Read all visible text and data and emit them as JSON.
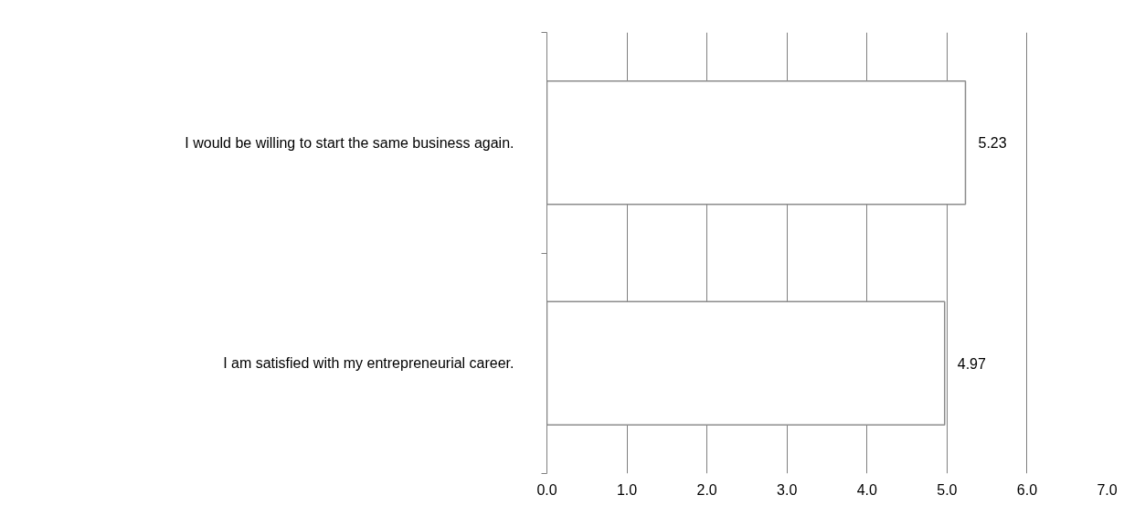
{
  "chart_data": {
    "type": "bar",
    "orientation": "horizontal",
    "categories": [
      "I would be willing to start the same business again.",
      "I am satisfied with my entrepreneurial career."
    ],
    "values": [
      5.23,
      4.97
    ],
    "color": "#ffffff",
    "xlim": [
      0,
      7
    ],
    "xticks": [
      {
        "value": 0,
        "label": "0.0"
      },
      {
        "value": 1,
        "label": "1.0"
      },
      {
        "value": 2,
        "label": "2.0"
      },
      {
        "value": 3,
        "label": "3.0"
      },
      {
        "value": 4,
        "label": "4.0"
      },
      {
        "value": 5,
        "label": "5.0"
      },
      {
        "value": 6,
        "label": "6.0"
      },
      {
        "value": 7,
        "label": "7.0"
      }
    ],
    "grid": "x",
    "data_labels": true
  }
}
